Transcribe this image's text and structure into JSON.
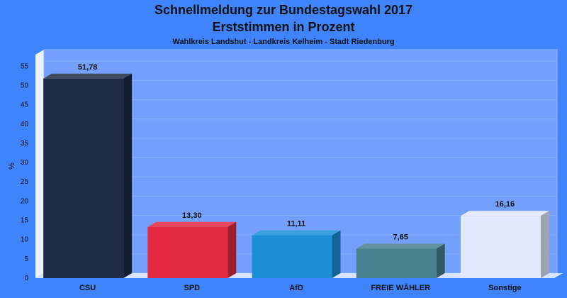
{
  "chart_data": {
    "type": "bar",
    "title": "Schnellmeldung zur Bundestagswahl 2017",
    "subtitle": "Erststimmen in Prozent",
    "subtitle2": "Wahlkreis Landshut - Landkreis Kelheim - Stadt Riedenburg",
    "ylabel": "%",
    "xlabel": "",
    "ylim": [
      0,
      58
    ],
    "yticks": [
      0,
      5,
      10,
      15,
      20,
      25,
      30,
      35,
      40,
      45,
      50,
      55
    ],
    "categories": [
      "CSU",
      "SPD",
      "AfD",
      "FREIE WÄHLER",
      "Sonstige"
    ],
    "values": [
      51.78,
      13.3,
      11.11,
      7.65,
      16.16
    ],
    "value_labels": [
      "51,78",
      "13,30",
      "11,11",
      "7,65",
      "16,16"
    ],
    "colors": [
      "#1e2b44",
      "#e2293f",
      "#1a8fd6",
      "#47808e",
      "#e1e9ff"
    ],
    "grid": true,
    "legend": "none"
  },
  "colors": {
    "background": "#3f84fb",
    "plot_area": "#74a0fb",
    "floor": "#d7e4fb"
  }
}
